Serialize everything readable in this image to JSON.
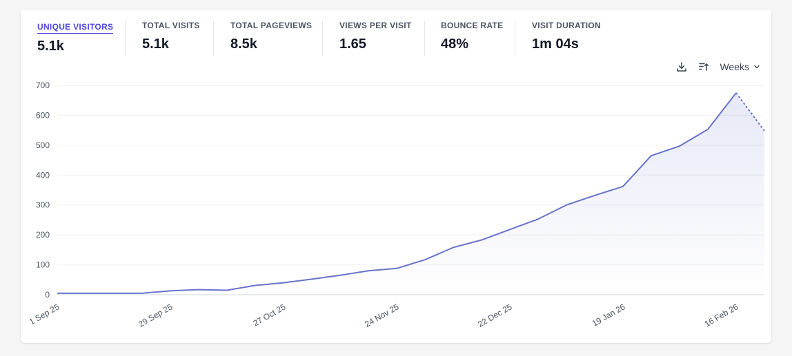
{
  "stats": [
    {
      "label": "UNIQUE VISITORS",
      "value": "5.1k",
      "active": true
    },
    {
      "label": "TOTAL VISITS",
      "value": "5.1k",
      "active": false
    },
    {
      "label": "TOTAL PAGEVIEWS",
      "value": "8.5k",
      "active": false
    },
    {
      "label": "VIEWS PER VISIT",
      "value": "1.65",
      "active": false
    },
    {
      "label": "BOUNCE RATE",
      "value": "48%",
      "active": false
    },
    {
      "label": "VISIT DURATION",
      "value": "1m 04s",
      "active": false
    }
  ],
  "toolbar": {
    "download_icon": "download-icon",
    "sort_icon": "sort-ascending-icon",
    "interval_label": "Weeks"
  },
  "colors": {
    "accent": "#4f46e5",
    "line": "#6673c9"
  },
  "chart_data": {
    "type": "line",
    "title": "",
    "xlabel": "",
    "ylabel": "",
    "ylim": [
      0,
      700
    ],
    "yticks": [
      0,
      100,
      200,
      300,
      400,
      500,
      600,
      700
    ],
    "xtick_labels": [
      {
        "index": 0,
        "label": "1 Sep 25"
      },
      {
        "index": 4,
        "label": "29 Sep 25"
      },
      {
        "index": 8,
        "label": "27 Oct 25"
      },
      {
        "index": 12,
        "label": "24 Nov 25"
      },
      {
        "index": 16,
        "label": "22 Dec 25"
      },
      {
        "index": 20,
        "label": "19 Jan 26"
      },
      {
        "index": 24,
        "label": "16 Feb 26"
      }
    ],
    "series": [
      {
        "name": "Unique visitors",
        "values": [
          5,
          5,
          5,
          5,
          13,
          17,
          15,
          31,
          40,
          52,
          65,
          80,
          88,
          117,
          158,
          183,
          218,
          253,
          300,
          332,
          362,
          465,
          497,
          553,
          675,
          548
        ],
        "incomplete_last": true
      }
    ],
    "grid": true
  }
}
